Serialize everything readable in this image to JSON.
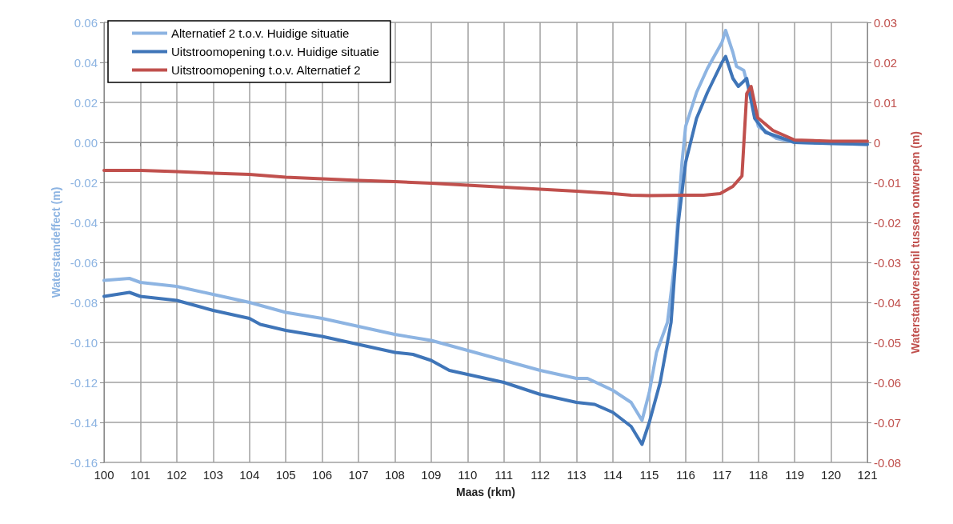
{
  "chart_data": {
    "type": "line",
    "xlabel": "Maas (rkm)",
    "ylabel": "Waterstandeffect (m)",
    "y2label": "Waterstandverschil tussen ontwerpen (m)",
    "xlim": [
      100,
      121
    ],
    "xticks": [
      100,
      101,
      102,
      103,
      104,
      105,
      106,
      107,
      108,
      109,
      110,
      111,
      112,
      113,
      114,
      115,
      116,
      117,
      118,
      119,
      120,
      121
    ],
    "ylim": [
      -0.16,
      0.06
    ],
    "yticks": [
      -0.16,
      -0.14,
      -0.12,
      {
        "value": -0.1,
        "label": "-0.10"
      },
      -0.08,
      -0.06,
      -0.04,
      -0.02,
      {
        "value": 0,
        "label": "0.00"
      },
      0.02,
      0.04,
      0.06
    ],
    "y2lim": [
      -0.08,
      0.03
    ],
    "y2ticks": [
      -0.08,
      -0.07,
      -0.06,
      -0.05,
      -0.04,
      -0.03,
      -0.02,
      -0.01,
      0,
      0.01,
      0.02,
      0.03
    ],
    "grid": true,
    "legend": "top left",
    "marker": "none",
    "line_style": "solid",
    "series": [
      {
        "name": "Alternatief 2 t.o.v. Huidige situatie",
        "color": "#8db4e2",
        "x": [
          100,
          100.7,
          101,
          102,
          103,
          104,
          105,
          106,
          107,
          108,
          109,
          110,
          111,
          112,
          113,
          113.3,
          114,
          114.5,
          114.8,
          115,
          115.2,
          115.5,
          115.7,
          115.9,
          116,
          116.3,
          116.6,
          117,
          117.1,
          117.3,
          117.4,
          117.6,
          117.8,
          118,
          118.5,
          119,
          121
        ],
        "values": [
          -0.069,
          -0.068,
          -0.07,
          -0.072,
          -0.076,
          -0.08,
          -0.085,
          -0.088,
          -0.092,
          -0.096,
          -0.099,
          -0.104,
          -0.109,
          -0.114,
          -0.118,
          -0.118,
          -0.124,
          -0.13,
          -0.139,
          -0.125,
          -0.105,
          -0.09,
          -0.06,
          -0.01,
          0.008,
          0.025,
          0.037,
          0.05,
          0.056,
          0.045,
          0.038,
          0.036,
          0.022,
          0.008,
          0.002,
          0,
          -0.001
        ]
      },
      {
        "name": "Uitstroomopening t.o.v. Huidige situatie",
        "color": "#3f75b8",
        "x": [
          100,
          100.7,
          101,
          102,
          103,
          104,
          104.3,
          105,
          106,
          107,
          108,
          108.5,
          109,
          109.5,
          110,
          111,
          112,
          113,
          113.5,
          114,
          114.5,
          114.8,
          115,
          115.3,
          115.6,
          115.8,
          116,
          116.3,
          116.6,
          117,
          117.1,
          117.3,
          117.45,
          117.68,
          117.9,
          118.2,
          119,
          121
        ],
        "values": [
          -0.077,
          -0.075,
          -0.077,
          -0.079,
          -0.084,
          -0.088,
          -0.091,
          -0.094,
          -0.097,
          -0.101,
          -0.105,
          -0.106,
          -0.109,
          -0.114,
          -0.116,
          -0.12,
          -0.126,
          -0.13,
          -0.131,
          -0.135,
          -0.142,
          -0.151,
          -0.14,
          -0.12,
          -0.09,
          -0.04,
          -0.01,
          0.012,
          0.025,
          0.04,
          0.043,
          0.032,
          0.028,
          0.032,
          0.012,
          0.005,
          0,
          -0.001
        ]
      },
      {
        "name": "Uitstroomopening t.o.v. Alternatief 2",
        "color": "#c0504d",
        "axis": "y2",
        "x": [
          100,
          101,
          102,
          103,
          104,
          105,
          106,
          107,
          108,
          109,
          110,
          111,
          112,
          113,
          114,
          114.5,
          115,
          116,
          116.5,
          116.95,
          117.3,
          117.55,
          117.68,
          117.8,
          117.98,
          118.4,
          119,
          120,
          121
        ],
        "values": [
          -0.007,
          -0.007,
          -0.0073,
          -0.0077,
          -0.008,
          -0.0087,
          -0.0091,
          -0.0095,
          -0.0098,
          -0.0102,
          -0.0107,
          -0.0112,
          -0.0117,
          -0.0122,
          -0.0128,
          -0.0132,
          -0.0133,
          -0.0132,
          -0.0132,
          -0.0128,
          -0.011,
          -0.0084,
          0.0122,
          0.014,
          0.0062,
          0.003,
          0.0006,
          0.0003,
          0.0003
        ]
      }
    ]
  }
}
